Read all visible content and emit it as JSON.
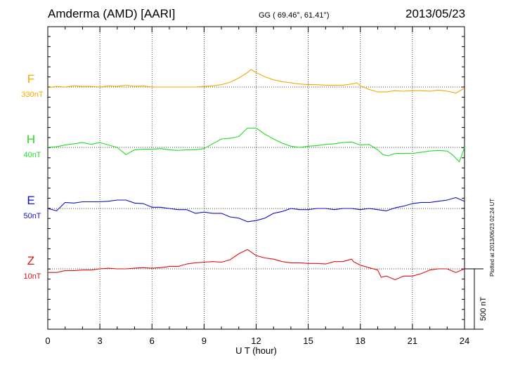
{
  "header": {
    "station": "Amderma (AMD)  [AARI]",
    "coordinates": "GG ( 69.46°,  61.41°)",
    "date": "2013/05/23"
  },
  "footer": {
    "plotted_note": "Plotted at 2013/06/23 02:24 UT"
  },
  "chart_data": {
    "type": "line",
    "title": "",
    "xlabel": "U T (hour)",
    "ylabel": "",
    "xlim": [
      0,
      24
    ],
    "x_ticks": [
      "0",
      "3",
      "6",
      "9",
      "12",
      "15",
      "18",
      "21",
      "24"
    ],
    "grid": true,
    "scale_bar": {
      "label": "500 nT",
      "value_nT": 500
    },
    "colors": {
      "F": "#f5a800",
      "H": "#22dd22",
      "E": "#1010c8",
      "Z": "#dd1111"
    },
    "series": [
      {
        "name": "F",
        "baseline_label": "330nT",
        "x": [
          0,
          0.5,
          1,
          1.5,
          2,
          2.5,
          3,
          3.5,
          4,
          4.5,
          5,
          5.5,
          6,
          6.5,
          7,
          7.5,
          8,
          8.5,
          9,
          9.5,
          10,
          10.5,
          11,
          11.5,
          11.7,
          12,
          12.5,
          13,
          13.5,
          14,
          14.5,
          15,
          15.5,
          16,
          16.5,
          17,
          17.5,
          17.8,
          18,
          18.5,
          19,
          19.5,
          20,
          20.5,
          21,
          21.5,
          22,
          22.5,
          23,
          23.5,
          24
        ],
        "values": [
          -5,
          5,
          0,
          10,
          5,
          5,
          0,
          10,
          5,
          15,
          5,
          10,
          0,
          0,
          0,
          0,
          0,
          0,
          5,
          10,
          20,
          40,
          75,
          120,
          145,
          120,
          85,
          60,
          45,
          35,
          25,
          20,
          20,
          15,
          15,
          15,
          25,
          35,
          10,
          -20,
          -40,
          -40,
          -30,
          -35,
          -30,
          -30,
          -35,
          -25,
          -35,
          -50,
          -10
        ]
      },
      {
        "name": "H",
        "baseline_label": "40nT",
        "x": [
          0,
          0.5,
          1,
          1.5,
          2,
          2.5,
          3,
          3.5,
          4,
          4.5,
          5,
          5.5,
          6,
          6.5,
          7,
          7.5,
          8,
          8.5,
          9,
          9.5,
          10,
          10.5,
          11,
          11.5,
          12,
          12.5,
          13,
          13.5,
          14,
          14.5,
          15,
          15.5,
          16,
          16.5,
          17,
          17.5,
          18,
          18.5,
          19,
          19.3,
          19.6,
          20,
          20.5,
          21,
          21.5,
          22,
          22.5,
          23,
          23.3,
          23.7,
          24
        ],
        "values": [
          0,
          5,
          20,
          30,
          40,
          25,
          40,
          20,
          0,
          -60,
          -20,
          -15,
          -15,
          -10,
          -20,
          -25,
          -20,
          -20,
          -10,
          30,
          70,
          75,
          90,
          160,
          160,
          110,
          70,
          35,
          10,
          0,
          10,
          15,
          25,
          30,
          40,
          45,
          20,
          25,
          -20,
          -60,
          -70,
          -50,
          -50,
          -50,
          -40,
          -30,
          -25,
          -30,
          -60,
          -120,
          0
        ]
      },
      {
        "name": "E",
        "baseline_label": "50nT",
        "x": [
          0,
          0.5,
          1,
          1.5,
          2,
          2.5,
          3,
          3.5,
          4,
          4.5,
          5,
          5.5,
          6,
          6.5,
          7,
          7.5,
          8,
          8.5,
          9,
          9.5,
          10,
          10.5,
          11,
          11.5,
          12,
          12.5,
          13,
          13.5,
          14,
          14.5,
          15,
          15.5,
          16,
          16.5,
          17,
          17.5,
          18,
          18.5,
          19,
          19.5,
          20,
          20.5,
          21,
          21.5,
          22,
          22.5,
          23,
          23.5,
          24
        ],
        "values": [
          0,
          -20,
          50,
          45,
          55,
          55,
          55,
          60,
          70,
          70,
          45,
          40,
          10,
          10,
          0,
          -10,
          -10,
          -40,
          -30,
          -40,
          -40,
          -70,
          -80,
          -110,
          -100,
          -80,
          -40,
          -25,
          0,
          -10,
          -10,
          0,
          0,
          -10,
          0,
          0,
          -10,
          0,
          -10,
          -20,
          5,
          20,
          40,
          50,
          50,
          60,
          70,
          90,
          60
        ]
      },
      {
        "name": "Z",
        "baseline_label": "10nT",
        "x": [
          0,
          0.5,
          1,
          1.5,
          2,
          2.5,
          3,
          3.5,
          4,
          4.5,
          5,
          5.5,
          6,
          6.5,
          7,
          7.5,
          8,
          8.5,
          9,
          9.5,
          10,
          10.5,
          11,
          11.5,
          11.6,
          12,
          12.5,
          13,
          13.5,
          14,
          14.5,
          15,
          15.5,
          16,
          16.5,
          17,
          17.5,
          17.6,
          18,
          18.5,
          19,
          19.2,
          19.5,
          20,
          20.5,
          21,
          21.5,
          22,
          22.5,
          23,
          23.5,
          24
        ],
        "values": [
          -30,
          -30,
          -15,
          -15,
          -10,
          -10,
          0,
          5,
          0,
          0,
          5,
          10,
          5,
          10,
          20,
          20,
          40,
          50,
          55,
          60,
          55,
          75,
          125,
          160,
          150,
          110,
          90,
          80,
          60,
          50,
          50,
          45,
          45,
          40,
          60,
          60,
          80,
          60,
          30,
          10,
          -10,
          -70,
          -60,
          -90,
          -60,
          -60,
          -40,
          -10,
          0,
          0,
          -30,
          0
        ]
      }
    ]
  }
}
